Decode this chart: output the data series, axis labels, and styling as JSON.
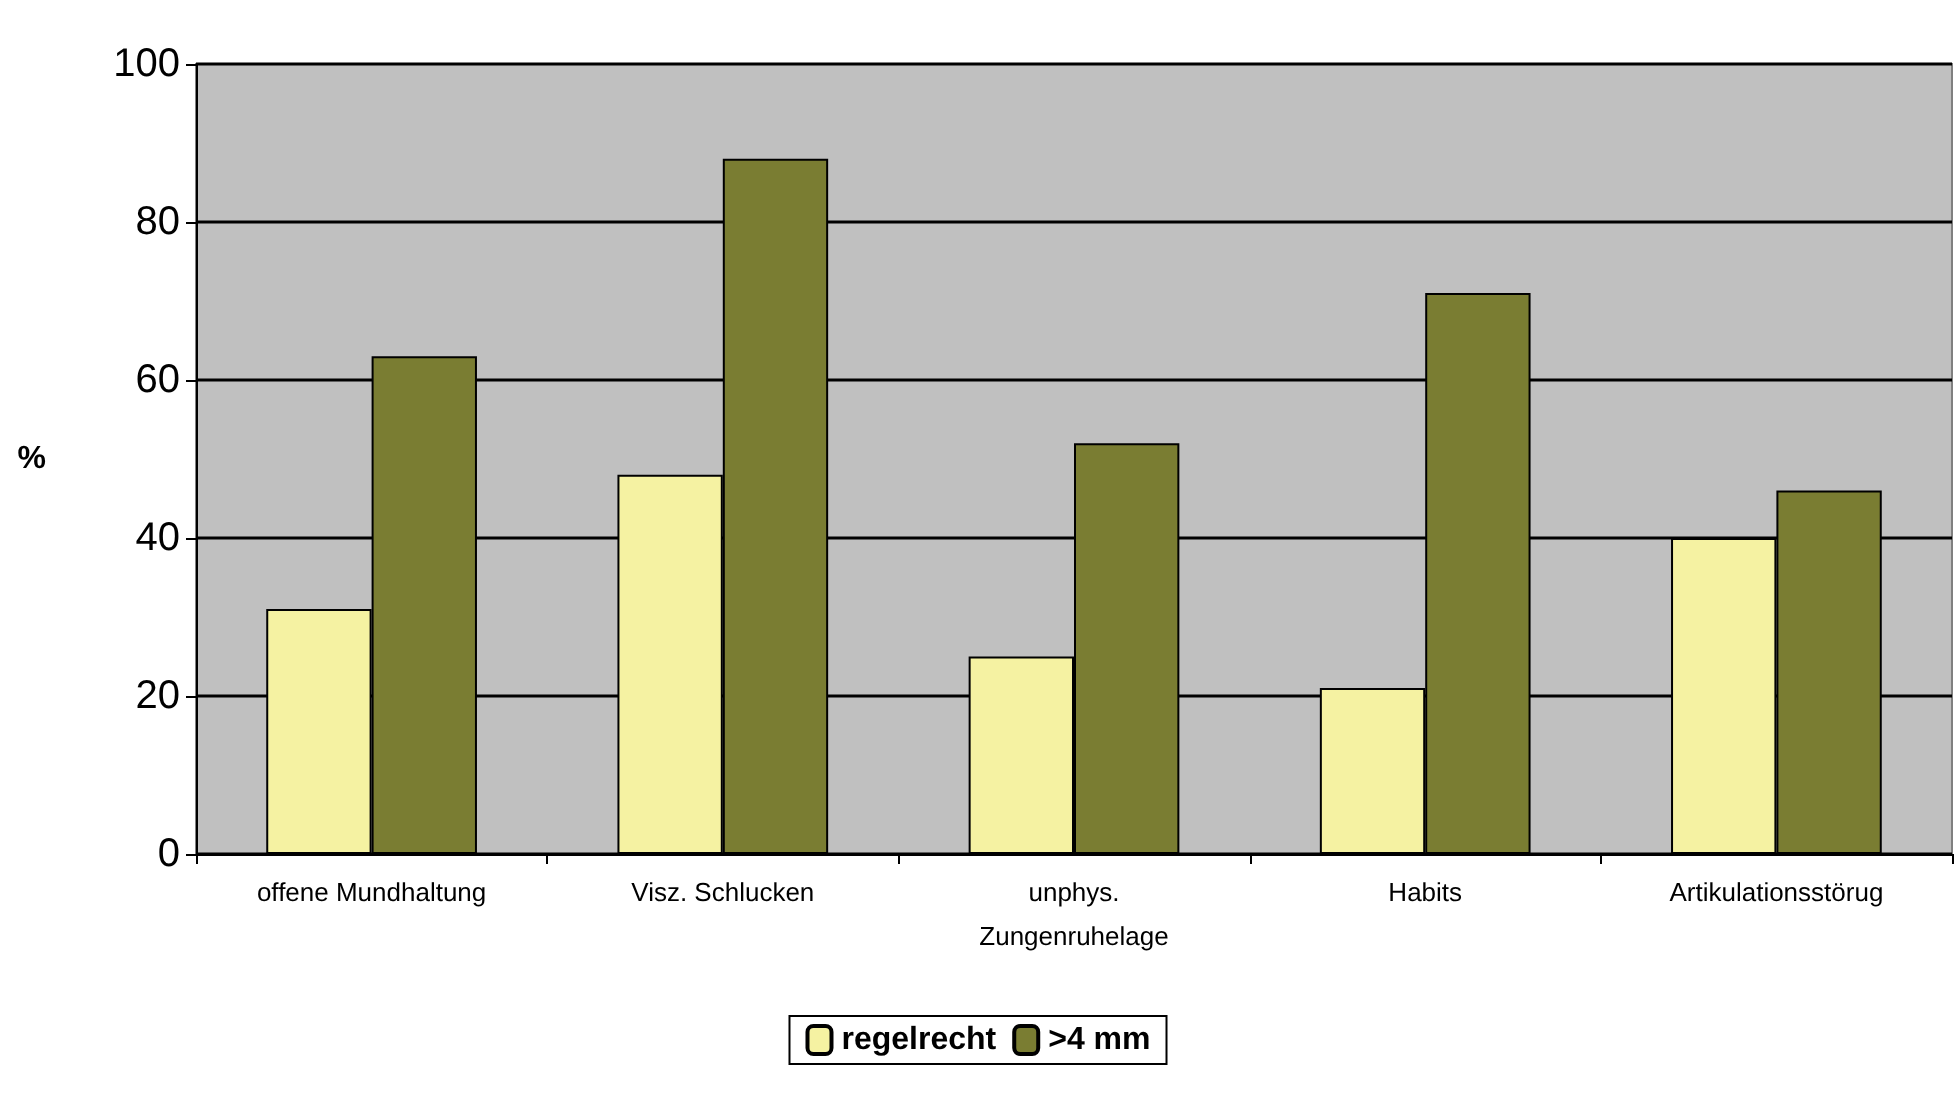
{
  "chart_data": {
    "type": "bar",
    "ylabel": "%",
    "categories": [
      "offene Mundhaltung",
      "Visz. Schlucken",
      "unphys.\nZungenruhelage",
      "Habits",
      "Artikulationsstörug"
    ],
    "series": [
      {
        "name": "regelrecht",
        "color": "#f5f2a2",
        "values": [
          31,
          48,
          25,
          21,
          40
        ]
      },
      {
        "name": ">4 mm",
        "color": "#7a7d32",
        "values": [
          63,
          88,
          52,
          71,
          46
        ]
      }
    ],
    "ylim": [
      0,
      100
    ],
    "yticks": [
      0,
      20,
      40,
      60,
      80,
      100
    ],
    "grid": "y",
    "legend": "bottom"
  }
}
